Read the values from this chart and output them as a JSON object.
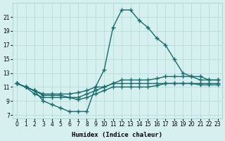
{
  "line1_x": [
    0,
    1,
    2,
    3,
    4,
    5,
    6,
    7,
    8,
    9,
    10,
    11,
    12,
    13,
    14,
    15,
    16,
    17,
    18,
    19,
    20,
    21,
    22,
    23
  ],
  "line1_y": [
    11.5,
    11.0,
    10.5,
    9.0,
    8.5,
    8.0,
    7.5,
    7.5,
    7.5,
    11.0,
    13.5,
    19.5,
    22.0,
    22.0,
    20.5,
    19.5,
    18.0,
    17.0,
    15.0,
    13.0,
    12.5,
    12.5,
    12.0,
    12.0
  ],
  "line2_x": [
    0,
    1,
    2,
    3,
    4,
    5,
    6,
    7,
    8,
    9,
    10,
    11,
    12,
    13,
    14,
    15,
    16,
    17,
    18,
    19,
    20,
    21,
    22,
    23
  ],
  "line2_y": [
    11.5,
    11.0,
    10.0,
    9.5,
    9.5,
    9.5,
    9.5,
    9.5,
    10.0,
    10.5,
    11.0,
    11.5,
    12.0,
    12.0,
    12.0,
    12.0,
    12.2,
    12.5,
    12.5,
    12.5,
    12.5,
    12.0,
    12.0,
    12.0
  ],
  "line3_x": [
    0,
    1,
    2,
    3,
    4,
    5,
    6,
    7,
    8,
    9,
    10,
    11,
    12,
    13,
    14,
    15,
    16,
    17,
    18,
    19,
    20,
    21,
    22,
    23
  ],
  "line3_y": [
    11.5,
    11.0,
    10.5,
    10.0,
    10.0,
    10.0,
    10.0,
    10.2,
    10.5,
    11.0,
    11.0,
    11.5,
    11.5,
    11.5,
    11.5,
    11.5,
    11.5,
    11.5,
    11.5,
    11.5,
    11.5,
    11.5,
    11.5,
    11.5
  ],
  "line4_x": [
    0,
    1,
    2,
    3,
    4,
    5,
    6,
    7,
    8,
    9,
    10,
    11,
    12,
    13,
    14,
    15,
    16,
    17,
    18,
    19,
    20,
    21,
    22,
    23
  ],
  "line4_y": [
    11.5,
    11.0,
    10.5,
    9.8,
    9.8,
    9.8,
    9.5,
    9.2,
    9.5,
    10.0,
    10.5,
    11.0,
    11.0,
    11.0,
    11.0,
    11.0,
    11.2,
    11.5,
    11.5,
    11.5,
    11.5,
    11.3,
    11.3,
    11.3
  ],
  "line_color": "#1a6b6b",
  "bg_color": "#d6f0f0",
  "grid_color": "#b0d8d8",
  "xlabel": "Humidex (Indice chaleur)",
  "yticks": [
    7,
    9,
    11,
    13,
    15,
    17,
    19,
    21
  ],
  "xticks": [
    0,
    1,
    2,
    3,
    4,
    5,
    6,
    7,
    8,
    9,
    10,
    11,
    12,
    13,
    14,
    15,
    16,
    17,
    18,
    19,
    20,
    21,
    22,
    23
  ],
  "xlim": [
    -0.5,
    23.5
  ],
  "ylim": [
    6.5,
    23
  ]
}
